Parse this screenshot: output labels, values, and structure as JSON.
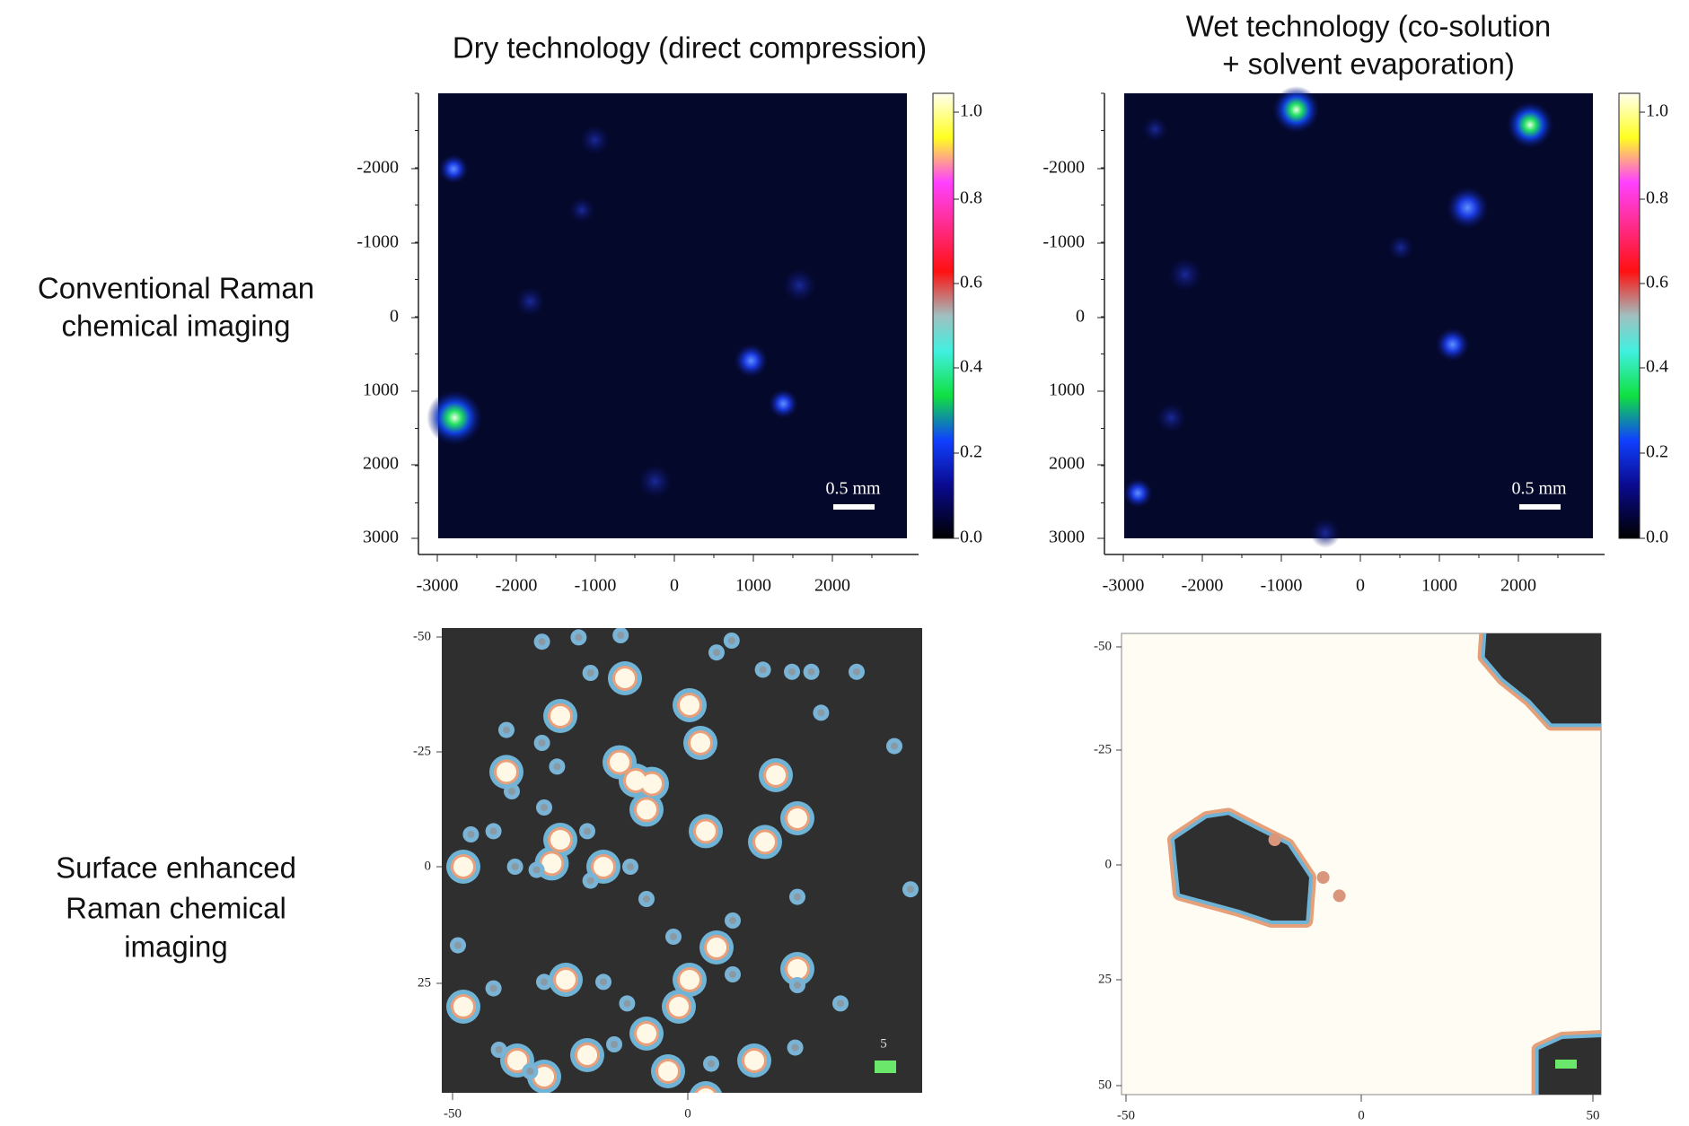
{
  "columns": [
    {
      "title": [
        "Dry technology (direct compression)"
      ]
    },
    {
      "title": [
        "Wet technology (co-solution",
        "+ solvent evaporation)"
      ]
    }
  ],
  "rows": [
    {
      "label": [
        "Conventional Raman",
        "chemical imaging"
      ]
    },
    {
      "label": [
        "Surface enhanced",
        "Raman chemical",
        "imaging"
      ]
    }
  ],
  "raman_axes": {
    "yticks": [
      "-2000",
      "-1000",
      "0",
      "1000",
      "2000",
      "3000"
    ],
    "xticks": [
      "-3000",
      "-2000",
      "-1000",
      "0",
      "1000",
      "2000"
    ],
    "colorbar_ticks": [
      "0.0",
      "0.2",
      "0.4",
      "0.6",
      "0.8",
      "1.0"
    ],
    "scale_bar": "0.5 mm"
  },
  "sers_axes": {
    "left": {
      "yticks": [
        "-50",
        "-25",
        "0",
        "25"
      ],
      "xticks": [
        "-50",
        "0"
      ],
      "marker_label": "5"
    },
    "right": {
      "yticks": [
        "-50",
        "-25",
        "0",
        "25",
        "50"
      ],
      "xticks": [
        "-50",
        "0",
        "50"
      ]
    }
  }
}
